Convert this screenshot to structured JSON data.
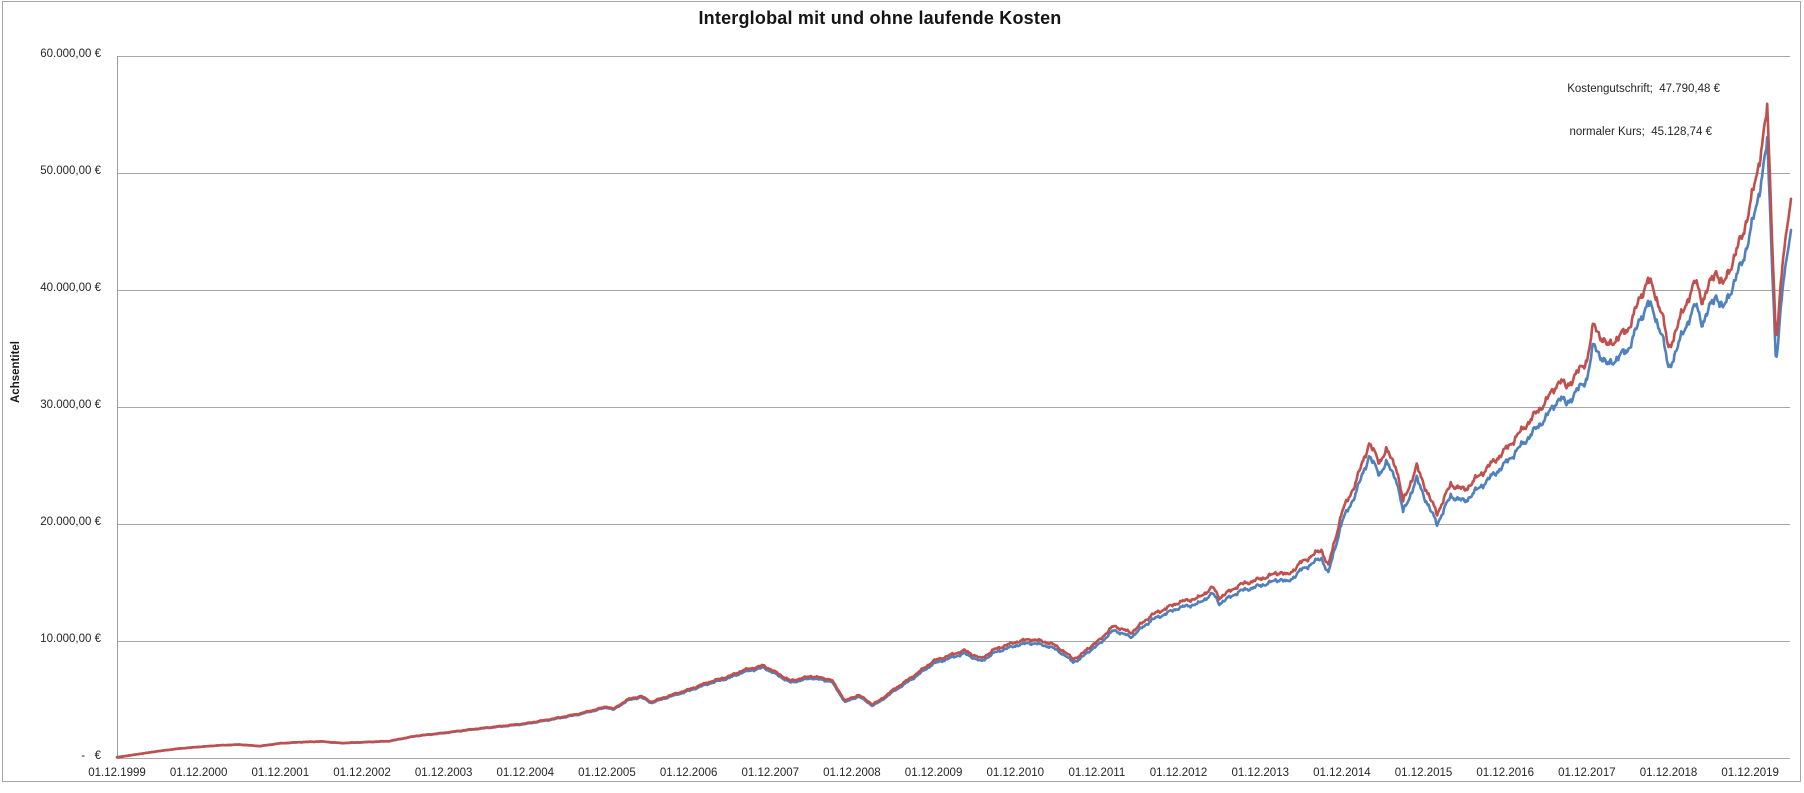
{
  "title": "Interglobal mit und ohne laufende Kosten",
  "y_axis": {
    "title": "Achsentitel",
    "tick_labels": [
      "-   €",
      "10.000,00 €",
      "20.000,00 €",
      "30.000,00 €",
      "40.000,00 €",
      "50.000,00 €",
      "60.000,00 €"
    ],
    "tick_values": [
      0,
      10000,
      20000,
      30000,
      40000,
      50000,
      60000
    ]
  },
  "x_axis": {
    "tick_labels": [
      "01.12.1999",
      "01.12.2000",
      "01.12.2001",
      "01.12.2002",
      "01.12.2003",
      "01.12.2004",
      "01.12.2005",
      "01.12.2006",
      "01.12.2007",
      "01.12.2008",
      "01.12.2009",
      "01.12.2010",
      "01.12.2011",
      "01.12.2012",
      "01.12.2013",
      "01.12.2014",
      "01.12.2015",
      "01.12.2016",
      "01.12.2017",
      "01.12.2018",
      "01.12.2019"
    ]
  },
  "annotations": {
    "kostengutschrift": "Kostengutschrift;  47.790,48 €",
    "normaler_kurs": "normaler Kurs;  45.128,74 €"
  },
  "colors": {
    "kostengutschrift": "#C0504D",
    "normaler_kurs": "#4F81BD",
    "gridline": "#A6A6A6",
    "axis": "#9C9C9C",
    "text": "#262626",
    "frame_border": "#A6A6A6"
  },
  "chart_data": {
    "type": "line",
    "title": "Interglobal mit und ohne laufende Kosten",
    "xlabel": "",
    "ylabel": "Achsentitel",
    "x_unit": "months since 01.12.1999",
    "x_range": [
      0,
      246
    ],
    "ylim": [
      0,
      60000
    ],
    "grid_step": 10000,
    "grid": true,
    "legend_position": "none",
    "final_values": {
      "Kostengutschrift": "47.790,48 €",
      "normaler Kurs": "45.128,74 €"
    },
    "texture": {
      "noise_amp": 0.016
    },
    "series": [
      {
        "name": "normaler Kurs",
        "color_key": "normaler_kurs",
        "points": [
          [
            0,
            60
          ],
          [
            3,
            319
          ],
          [
            6,
            579
          ],
          [
            9,
            797
          ],
          [
            12,
            946
          ],
          [
            15,
            1075
          ],
          [
            18,
            1143
          ],
          [
            21,
            1013
          ],
          [
            24,
            1251
          ],
          [
            27,
            1349
          ],
          [
            30,
            1407
          ],
          [
            33,
            1268
          ],
          [
            36,
            1336
          ],
          [
            40,
            1433
          ],
          [
            44,
            1876
          ],
          [
            48,
            2121
          ],
          [
            52,
            2415
          ],
          [
            56,
            2659
          ],
          [
            60,
            2903
          ],
          [
            64,
            3293
          ],
          [
            68,
            3732
          ],
          [
            72,
            4318
          ],
          [
            73,
            4121
          ],
          [
            75,
            4904
          ],
          [
            77,
            5196
          ],
          [
            78.5,
            4704
          ],
          [
            81,
            5191
          ],
          [
            84,
            5726
          ],
          [
            87,
            6358
          ],
          [
            90,
            6843
          ],
          [
            92,
            7329
          ],
          [
            95,
            7715
          ],
          [
            96,
            7421
          ],
          [
            99,
            6440
          ],
          [
            102,
            6826
          ],
          [
            105,
            6530
          ],
          [
            107,
            4774
          ],
          [
            109,
            5259
          ],
          [
            111,
            4478
          ],
          [
            112,
            4769
          ],
          [
            114,
            5642
          ],
          [
            117,
            6806
          ],
          [
            120,
            8065
          ],
          [
            123,
            8643
          ],
          [
            124.5,
            8931
          ],
          [
            127,
            8248
          ],
          [
            129,
            9020
          ],
          [
            132,
            9596
          ],
          [
            134,
            9834
          ],
          [
            136,
            9685
          ],
          [
            138,
            9294
          ],
          [
            140.5,
            8225
          ],
          [
            141.5,
            8417
          ],
          [
            142.5,
            8996
          ],
          [
            144,
            9573
          ],
          [
            146.5,
            10921
          ],
          [
            149,
            10336
          ],
          [
            152,
            11779
          ],
          [
            156,
            12831
          ],
          [
            159,
            13208
          ],
          [
            161,
            14072
          ],
          [
            162,
            13201
          ],
          [
            165,
            14253
          ],
          [
            168,
            14726
          ],
          [
            171,
            15294
          ],
          [
            172,
            15003
          ],
          [
            174,
            16055
          ],
          [
            177,
            17102
          ],
          [
            178,
            15754
          ],
          [
            180,
            20166
          ],
          [
            182,
            22558
          ],
          [
            184,
            25811
          ],
          [
            185.5,
            24270
          ],
          [
            186.5,
            25224
          ],
          [
            188,
            23874
          ],
          [
            189,
            20993
          ],
          [
            191,
            23859
          ],
          [
            193,
            21169
          ],
          [
            194,
            20016
          ],
          [
            196,
            22401
          ],
          [
            198,
            21915
          ],
          [
            201,
            23528
          ],
          [
            204,
            25140
          ],
          [
            207,
            27131
          ],
          [
            210,
            29121
          ],
          [
            212,
            30827
          ],
          [
            213,
            30248
          ],
          [
            216,
            32426
          ],
          [
            217,
            35280
          ],
          [
            219,
            33549
          ],
          [
            222,
            34865
          ],
          [
            225,
            39032
          ],
          [
            227,
            36355
          ],
          [
            228,
            33207
          ],
          [
            231,
            37561
          ],
          [
            232,
            38697
          ],
          [
            233,
            37168
          ],
          [
            235,
            39623
          ],
          [
            236,
            38289
          ],
          [
            239,
            42633
          ],
          [
            241,
            47265
          ],
          [
            242.5,
            52659
          ],
          [
            243.8,
            33865
          ],
          [
            245,
            41255
          ],
          [
            246,
            45128.74
          ]
        ]
      },
      {
        "name": "Kostengutschrift",
        "color_key": "kostengutschrift",
        "points": [
          [
            0,
            60
          ],
          [
            3,
            320
          ],
          [
            6,
            580
          ],
          [
            9,
            800
          ],
          [
            12,
            950
          ],
          [
            15,
            1080
          ],
          [
            18,
            1150
          ],
          [
            21,
            1020
          ],
          [
            24,
            1260
          ],
          [
            27,
            1360
          ],
          [
            30,
            1420
          ],
          [
            33,
            1280
          ],
          [
            36,
            1350
          ],
          [
            40,
            1450
          ],
          [
            44,
            1900
          ],
          [
            48,
            2150
          ],
          [
            52,
            2450
          ],
          [
            56,
            2700
          ],
          [
            60,
            2950
          ],
          [
            64,
            3350
          ],
          [
            68,
            3800
          ],
          [
            72,
            4400
          ],
          [
            73,
            4200
          ],
          [
            75,
            5000
          ],
          [
            77,
            5300
          ],
          [
            78.5,
            4800
          ],
          [
            81,
            5300
          ],
          [
            84,
            5850
          ],
          [
            87,
            6500
          ],
          [
            90,
            7000
          ],
          [
            92,
            7500
          ],
          [
            95,
            7900
          ],
          [
            96,
            7600
          ],
          [
            99,
            6600
          ],
          [
            102,
            7000
          ],
          [
            105,
            6700
          ],
          [
            107,
            4900
          ],
          [
            109,
            5400
          ],
          [
            111,
            4600
          ],
          [
            112,
            4900
          ],
          [
            114,
            5800
          ],
          [
            117,
            7000
          ],
          [
            120,
            8300
          ],
          [
            123,
            8900
          ],
          [
            124.5,
            9200
          ],
          [
            127,
            8500
          ],
          [
            129,
            9300
          ],
          [
            132,
            9900
          ],
          [
            134,
            10150
          ],
          [
            136,
            10000
          ],
          [
            138,
            9600
          ],
          [
            140.5,
            8500
          ],
          [
            141.5,
            8700
          ],
          [
            142.5,
            9300
          ],
          [
            144,
            9900
          ],
          [
            146.5,
            11300
          ],
          [
            149,
            10700
          ],
          [
            152,
            12200
          ],
          [
            156,
            13300
          ],
          [
            159,
            13700
          ],
          [
            161,
            14600
          ],
          [
            162,
            13700
          ],
          [
            165,
            14800
          ],
          [
            168,
            15300
          ],
          [
            171,
            15900
          ],
          [
            172,
            15600
          ],
          [
            174,
            16700
          ],
          [
            177,
            17800
          ],
          [
            178,
            16400
          ],
          [
            180,
            21000
          ],
          [
            182,
            23500
          ],
          [
            184,
            26900
          ],
          [
            185.5,
            25300
          ],
          [
            186.5,
            26300
          ],
          [
            188,
            24900
          ],
          [
            189,
            21900
          ],
          [
            191,
            24900
          ],
          [
            193,
            22100
          ],
          [
            194,
            20900
          ],
          [
            196,
            23400
          ],
          [
            198,
            22900
          ],
          [
            201,
            24600
          ],
          [
            204,
            26300
          ],
          [
            207,
            28400
          ],
          [
            210,
            30500
          ],
          [
            212,
            32300
          ],
          [
            213,
            31700
          ],
          [
            216,
            34000
          ],
          [
            217,
            37000
          ],
          [
            219,
            35200
          ],
          [
            222,
            36600
          ],
          [
            225,
            41000
          ],
          [
            227,
            38200
          ],
          [
            228,
            34900
          ],
          [
            231,
            39500
          ],
          [
            232,
            40700
          ],
          [
            233,
            39100
          ],
          [
            235,
            41700
          ],
          [
            236,
            40300
          ],
          [
            239,
            44900
          ],
          [
            241,
            49800
          ],
          [
            242.5,
            55500
          ],
          [
            243.8,
            35700
          ],
          [
            245,
            43500
          ],
          [
            246,
            47790.48
          ]
        ]
      }
    ]
  }
}
